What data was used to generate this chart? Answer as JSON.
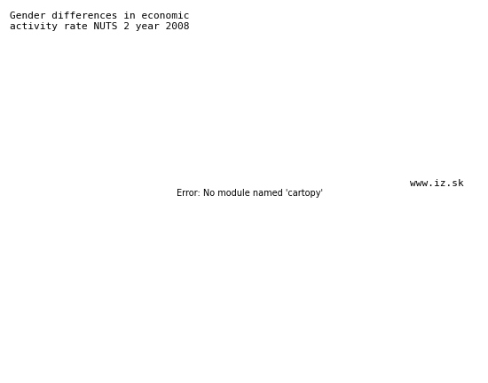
{
  "title_line1": "Gender differences in economic",
  "title_line2": "activity rate NUTS 2 year 2008",
  "watermark": "www.iz.sk",
  "background_color": "#ffffff",
  "border_color": "#000000",
  "title_fontsize": 8,
  "watermark_fontsize": 8,
  "fig_width": 5.5,
  "fig_height": 4.32,
  "dpi": 100,
  "map_extent_lon": [
    -11,
    42
  ],
  "map_extent_lat": [
    33,
    71
  ],
  "central_longitude": 13,
  "central_latitude": 52,
  "country_colors": {
    "Norway": "#2a2a2a",
    "Sweden": "#222222",
    "Finland": "#111111",
    "Denmark": "#444444",
    "Iceland": "#555555",
    "United Kingdom": "#555555",
    "Ireland": "#aaaaaa",
    "France": "#555555",
    "Spain": "#bbbbbb",
    "Portugal": "#888888",
    "Germany": "#333333",
    "Belgium": "#555555",
    "Netherlands": "#666666",
    "Luxembourg": "#555555",
    "Switzerland": "#666666",
    "Austria": "#555555",
    "Italy": "#cccccc",
    "Greece": "#dddddd",
    "Poland": "#888888",
    "Czech Republic": "#777777",
    "Slovakia": "#888888",
    "Hungary": "#aaaaaa",
    "Romania": "#999999",
    "Bulgaria": "#888888",
    "Slovenia": "#aaaaaa",
    "Croatia": "#999999",
    "Serbia": "#888888",
    "Bosnia and Herzegovina": "#999999",
    "Albania": "#aaaaaa",
    "North Macedonia": "#aaaaaa",
    "Montenegro": "#999999",
    "Latvia": "#555555",
    "Lithuania": "#666666",
    "Estonia": "#333333",
    "Belarus": "#777777",
    "Ukraine": "#888888",
    "Moldova": "#999999",
    "Turkey": "#888888",
    "Cyprus": "#cccccc",
    "Malta": "#cccccc",
    "Kosovo": "#999999"
  }
}
